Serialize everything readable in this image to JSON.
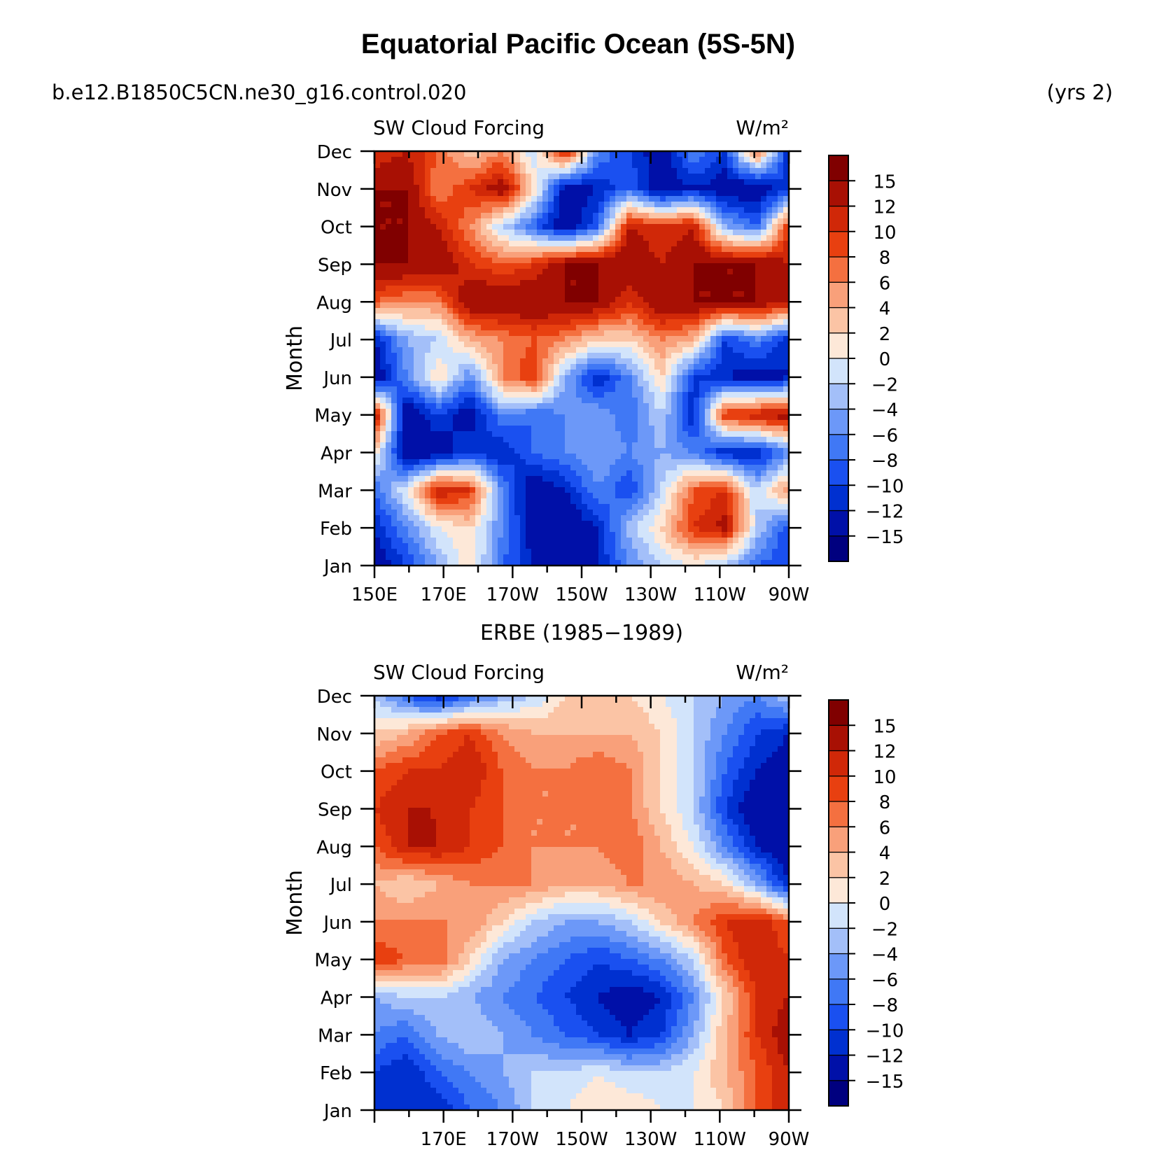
{
  "figure": {
    "title": "Equatorial Pacific Ocean (5S-5N)",
    "case_name": "b.e12.B1850C5CN.ne30_g16.control.020",
    "years_label": "(yrs 2)"
  },
  "colorbar": {
    "colors": [
      "#00007f",
      "#0010a8",
      "#0030d0",
      "#1a50f0",
      "#4078f5",
      "#6c98f8",
      "#a3bff9",
      "#d2e4fb",
      "#fde8d8",
      "#fbc4a5",
      "#f9a07a",
      "#f47040",
      "#e84010",
      "#d02808",
      "#a81004",
      "#800000"
    ],
    "labels": [
      "15",
      "12",
      "10",
      "8",
      "6",
      "4",
      "2",
      "0",
      "−2",
      "−4",
      "−6",
      "−8",
      "−10",
      "−12",
      "−15"
    ]
  },
  "chart_data": [
    {
      "type": "heatmap",
      "panel_label": "",
      "title_left": "SW Cloud Forcing",
      "title_right": "W/m²",
      "ylabel": "Month",
      "months": [
        "Jan",
        "Feb",
        "Mar",
        "Apr",
        "May",
        "Jun",
        "Jul",
        "Aug",
        "Sep",
        "Oct",
        "Nov",
        "Dec"
      ],
      "x_tick_labels": [
        "150E",
        "170E",
        "170W",
        "150W",
        "130W",
        "110W",
        "90W"
      ],
      "x_range_deg": [
        150,
        270
      ],
      "levels": [
        -15,
        -12,
        -10,
        -8,
        -6,
        -4,
        -2,
        0,
        2,
        4,
        6,
        8,
        10,
        12,
        15
      ],
      "values": [
        [
          -14,
          -10,
          -4,
          2,
          -8,
          -12,
          -14,
          -12,
          -6,
          -2,
          0,
          -3,
          -8,
          -10
        ],
        [
          -12,
          -6,
          0,
          2,
          -6,
          -14,
          -15,
          -12,
          -3,
          2,
          10,
          13,
          -2,
          -10
        ],
        [
          -8,
          0,
          12,
          10,
          -6,
          -15,
          -12,
          -6,
          -10,
          -2,
          8,
          10,
          -2,
          6
        ],
        [
          2,
          -15,
          -14,
          -10,
          -12,
          -8,
          -6,
          -4,
          -6,
          -4,
          -6,
          -12,
          -12,
          -6
        ],
        [
          14,
          -15,
          -10,
          -14,
          -6,
          -8,
          -6,
          -4,
          -8,
          -2,
          -12,
          10,
          12,
          14
        ],
        [
          -15,
          -6,
          2,
          -6,
          6,
          10,
          -4,
          -12,
          -6,
          2,
          -10,
          -12,
          -14,
          -12
        ],
        [
          -12,
          -4,
          -2,
          4,
          6,
          8,
          6,
          2,
          2,
          6,
          4,
          -10,
          -6,
          -12
        ],
        [
          8,
          6,
          6,
          15,
          15,
          15,
          15,
          15,
          10,
          15,
          15,
          15,
          15,
          12
        ],
        [
          15,
          15,
          15,
          10,
          8,
          10,
          15,
          15,
          15,
          12,
          15,
          15,
          15,
          12
        ],
        [
          15,
          15,
          12,
          6,
          -2,
          -8,
          -15,
          -8,
          12,
          10,
          12,
          -4,
          -8,
          10
        ],
        [
          15,
          15,
          6,
          10,
          14,
          2,
          -14,
          -12,
          -8,
          -15,
          -12,
          -14,
          -15,
          -10
        ],
        [
          10,
          12,
          8,
          2,
          6,
          -2,
          12,
          -6,
          -10,
          -14,
          -6,
          -10,
          8,
          -12
        ]
      ]
    },
    {
      "type": "heatmap",
      "panel_label": "ERBE (1985−1989)",
      "title_left": "SW Cloud Forcing",
      "title_right": "W/m²",
      "ylabel": "Month",
      "months": [
        "Jan",
        "Feb",
        "Mar",
        "Apr",
        "May",
        "Jun",
        "Jul",
        "Aug",
        "Sep",
        "Oct",
        "Nov",
        "Dec"
      ],
      "x_tick_labels": [
        "",
        "170E",
        "170W",
        "150W",
        "130W",
        "110W",
        "90W"
      ],
      "x_range_deg": [
        150,
        270
      ],
      "levels": [
        -15,
        -12,
        -10,
        -8,
        -6,
        -4,
        -2,
        0,
        2,
        4,
        6,
        8,
        10,
        12,
        15
      ],
      "values": [
        [
          -10,
          -12,
          -12,
          -8,
          -6,
          -2,
          0,
          2,
          2,
          0,
          0,
          2,
          8,
          12
        ],
        [
          -10,
          -12,
          -8,
          -6,
          -4,
          -2,
          -2,
          0,
          -2,
          -2,
          0,
          4,
          8,
          12
        ],
        [
          -6,
          -8,
          -4,
          -2,
          -4,
          -6,
          -8,
          -10,
          -12,
          -10,
          -4,
          4,
          10,
          14
        ],
        [
          -4,
          -2,
          -2,
          -4,
          -6,
          -8,
          -10,
          -12,
          -14,
          -12,
          -6,
          2,
          10,
          12
        ],
        [
          10,
          8,
          8,
          2,
          -4,
          -6,
          -8,
          -10,
          -8,
          -6,
          -2,
          8,
          12,
          10
        ],
        [
          6,
          6,
          6,
          6,
          2,
          -2,
          -4,
          -4,
          -2,
          2,
          6,
          10,
          12,
          8
        ],
        [
          4,
          2,
          4,
          6,
          6,
          6,
          4,
          4,
          6,
          6,
          4,
          2,
          -4,
          -12
        ],
        [
          8,
          12,
          12,
          10,
          8,
          6,
          6,
          6,
          8,
          4,
          0,
          -6,
          -12,
          -15
        ],
        [
          10,
          12,
          12,
          10,
          8,
          6,
          6,
          6,
          6,
          2,
          -2,
          -10,
          -15,
          -15
        ],
        [
          8,
          10,
          10,
          12,
          8,
          6,
          6,
          8,
          6,
          2,
          -2,
          -8,
          -12,
          -14
        ],
        [
          2,
          4,
          8,
          10,
          6,
          4,
          4,
          4,
          4,
          2,
          -2,
          -6,
          -10,
          -12
        ],
        [
          -2,
          -8,
          -12,
          -8,
          -4,
          -2,
          2,
          2,
          2,
          0,
          -2,
          -4,
          -6,
          -2
        ]
      ]
    }
  ]
}
